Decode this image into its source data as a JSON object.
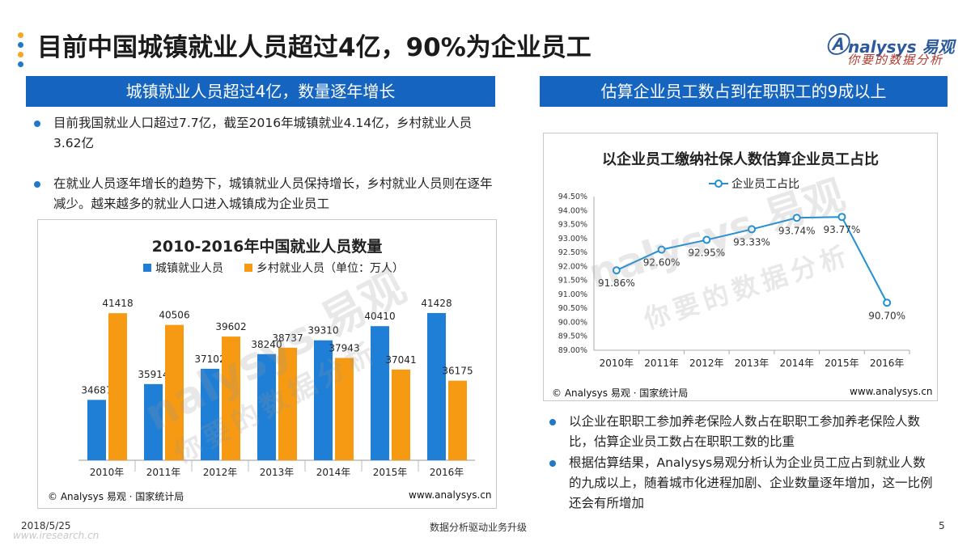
{
  "header": {
    "title": "目前中国城镇就业人员超过4亿，90%为企业员工",
    "logo_text": "nalysys 易观",
    "logo_sub": "你要的数据分析",
    "dot_colors": [
      "#f5a623",
      "#1f78c8",
      "#f5a623",
      "#1f78c8"
    ]
  },
  "left": {
    "banner": "城镇就业人员超过4亿，数量逐年增长",
    "bullets": [
      "目前我国就业人口超过7.7亿，截至2016年城镇就业4.14亿，乡村就业人员3.62亿",
      "在就业人员逐年增长的趋势下，城镇就业人员保持增长，乡村就业人员则在逐年减少。越来越多的就业人口进入城镇成为企业员工"
    ],
    "source": "© Analysys 易观 · 国家统计局",
    "url": "www.analysys.cn"
  },
  "right": {
    "banner": "估算企业员工数占到在职职工的9成以上",
    "bullets": [
      "以企业在职职工参加养老保险人数占在职职工参加养老保险人数比，估算企业员工数占在职职工数的比重",
      "根据估算结果，Analysys易观分析认为企业员工应占到就业人数的九成以上，随着城市化进程加剧、企业数量逐年增加，这一比例还会有所增加"
    ],
    "source": "© Analysys 易观 · 国家统计局",
    "url": "www.analysys.cn"
  },
  "chart_data": [
    {
      "type": "bar",
      "title": "2010-2016年中国就业人员数量",
      "categories": [
        "2010年",
        "2011年",
        "2012年",
        "2013年",
        "2014年",
        "2015年",
        "2016年"
      ],
      "series": [
        {
          "name": "城镇就业人员",
          "values": [
            34687,
            35914,
            37102,
            38240,
            39310,
            40410,
            41428
          ],
          "color": "#1f7fd6"
        },
        {
          "name": "乡村就业人员（单位：万人）",
          "values": [
            41418,
            40506,
            39602,
            38737,
            37943,
            37041,
            36175
          ],
          "color": "#f59a12"
        }
      ],
      "xlabel": "",
      "ylabel": "",
      "ylim": [
        30000,
        43500
      ],
      "legend": "top"
    },
    {
      "type": "line",
      "title": "以企业员工缴纳社保人数估算企业员工占比",
      "x": [
        "2010年",
        "2011年",
        "2012年",
        "2013年",
        "2014年",
        "2015年",
        "2016年"
      ],
      "series": [
        {
          "name": "企业员工占比",
          "values": [
            91.86,
            92.6,
            92.95,
            93.33,
            93.74,
            93.77,
            90.7
          ],
          "labels": [
            "91.86%",
            "92.60%",
            "92.95%",
            "93.33%",
            "93.74%",
            "93.77%",
            "90.70%"
          ],
          "color": "#1f8fd6"
        }
      ],
      "yticks": [
        "89.00%",
        "89.50%",
        "90.00%",
        "90.50%",
        "91.00%",
        "91.50%",
        "92.00%",
        "92.50%",
        "93.00%",
        "93.50%",
        "94.00%",
        "94.50%"
      ],
      "ylim": [
        89.0,
        94.5
      ],
      "grid": false,
      "legend": "top"
    }
  ],
  "footer": {
    "date": "2018/5/25",
    "center": "数据分析驱动业务升级",
    "page": "5",
    "site": "www.iresearch.cn"
  },
  "watermark": {
    "brand": "nalysys 易观",
    "slogan": "你要的数据分析"
  }
}
